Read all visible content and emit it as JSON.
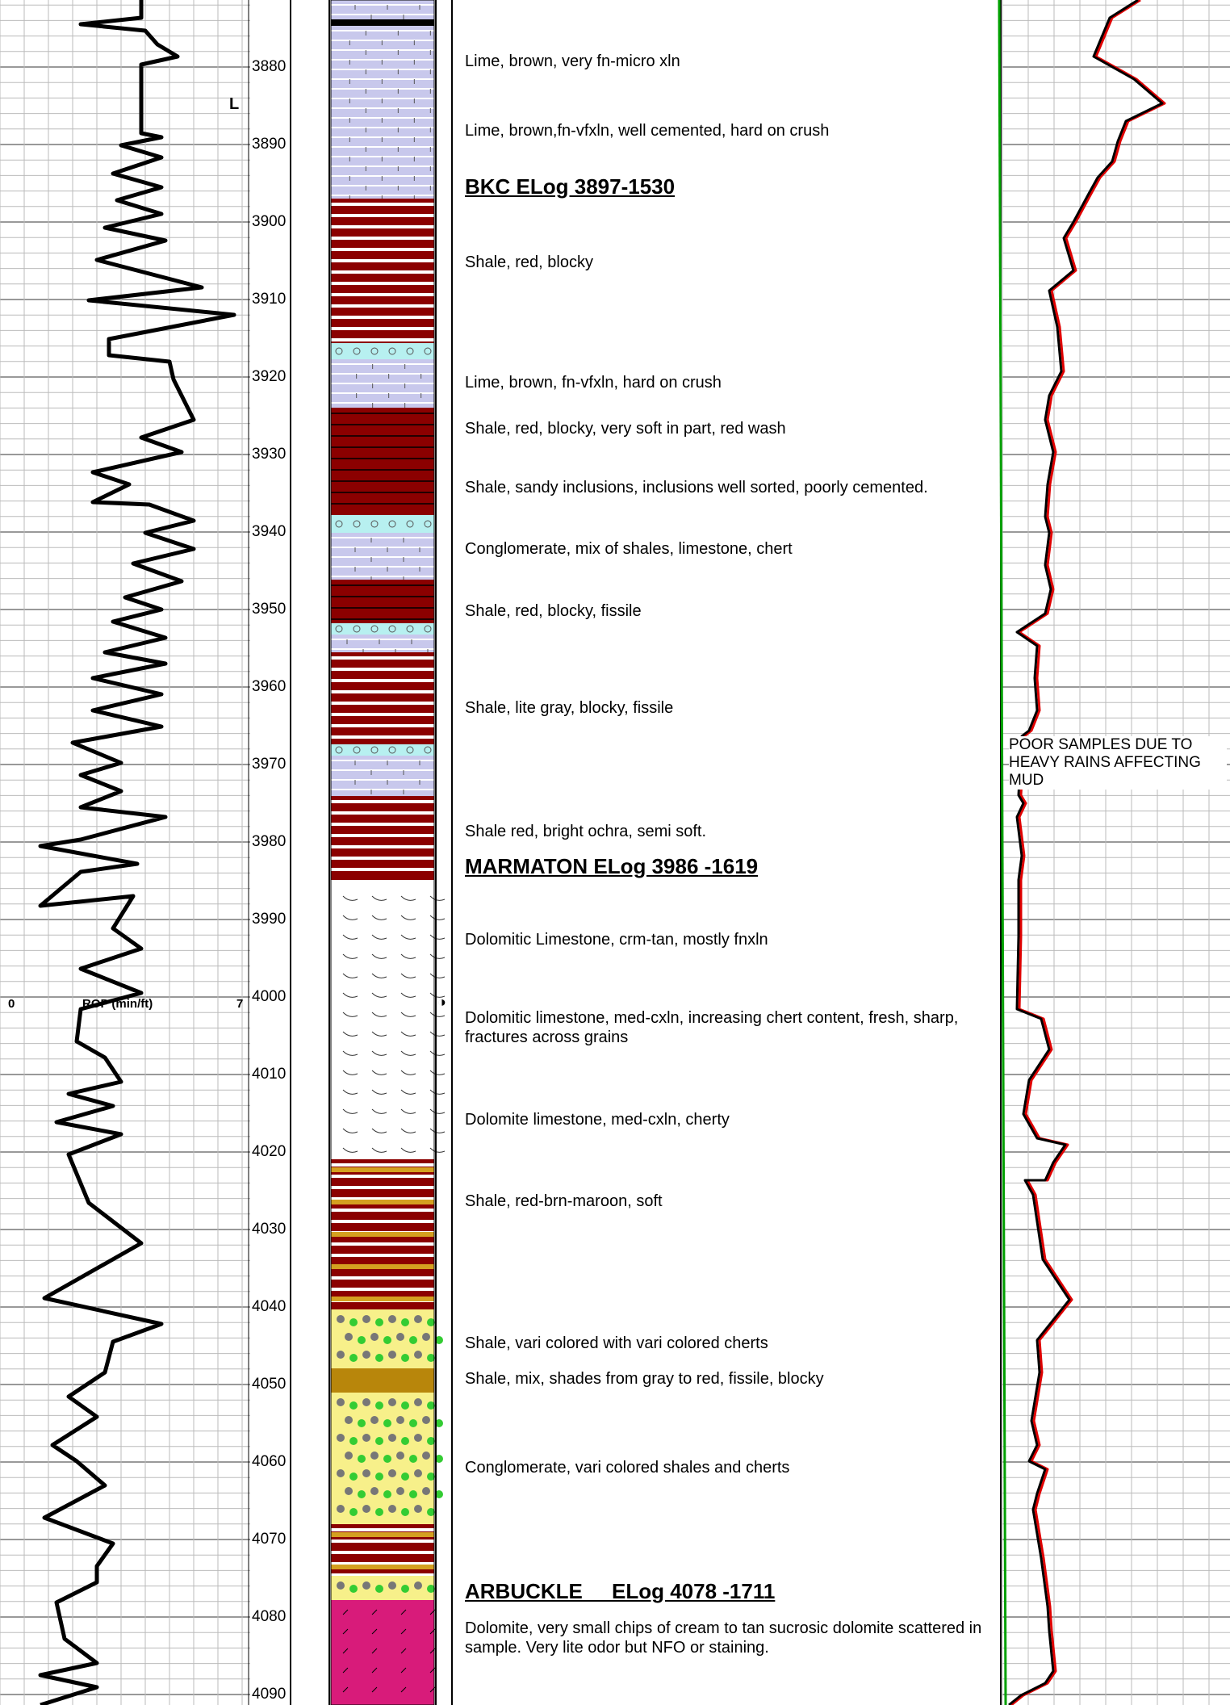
{
  "depth_track": {
    "labels": [
      "3880",
      "3890",
      "3900",
      "3910",
      "3920",
      "3930",
      "3940",
      "3950",
      "3960",
      "3970",
      "3980",
      "3990",
      "4000",
      "4010",
      "4020",
      "4030",
      "4040",
      "4050",
      "4060",
      "4070",
      "4080",
      "4090"
    ]
  },
  "rop_track": {
    "scale_min": "0",
    "scale_title": "ROP (min/ft)",
    "scale_max": "7",
    "marker": "L"
  },
  "core_symbol": "◑",
  "formation_tops": [
    {
      "text": "BKC ELog 3897-1530"
    },
    {
      "text": "MARMATON ELog 3986 -1619"
    },
    {
      "text": "ARBUCKLE     ELog 4078 -1711"
    }
  ],
  "descriptions": [
    {
      "text": "Lime, brown, very fn-micro xln"
    },
    {
      "text": "Lime, brown,fn-vfxln, well cemented, hard on crush"
    },
    {
      "text": "Shale, red, blocky"
    },
    {
      "text": "Lime, brown, fn-vfxln, hard on crush"
    },
    {
      "text": "Shale, red, blocky, very soft in part, red wash"
    },
    {
      "text": "Shale, sandy inclusions, inclusions well sorted, poorly cemented."
    },
    {
      "text": "Conglomerate, mix of shales, limestone, chert"
    },
    {
      "text": "Shale, red, blocky, fissile"
    },
    {
      "text": "Shale, lite gray, blocky, fissile"
    },
    {
      "text": "Shale red, bright ochra, semi soft."
    },
    {
      "text": "Dolomitic Limestone, crm-tan, mostly fnxln"
    },
    {
      "text": "Dolomitic limestone, med-cxln, increasing chert content, fresh, sharp, fractures across grains"
    },
    {
      "text": "Dolomite limestone, med-cxln, cherty"
    },
    {
      "text": "Shale, red-brn-maroon, soft"
    },
    {
      "text": "Shale, vari colored with vari colored cherts"
    },
    {
      "text": "Shale, mix, shades from gray to red, fissile, blocky"
    },
    {
      "text": "Conglomerate, vari colored shales and cherts"
    },
    {
      "text": "Dolomite, very small chips of cream to tan sucrosic dolomite scattered in sample. Very lite odor but NFO or staining."
    }
  ],
  "gas_note": "POOR SAMPLES DUE TO HEAVY RAINS AFFECTING MUD",
  "colors": {
    "limestone": "#c8c8ec",
    "shale_red": "#8b0000",
    "conglomerate": "#b7f0f0",
    "dolomite": "#ffffff",
    "sandy_shale": "#d4a020",
    "chert_conglomerate": "#f7f08a",
    "arbuckle_dolomite": "#d81b7a",
    "gas_curve_red": "#e00000",
    "green_line": "#00a000"
  }
}
